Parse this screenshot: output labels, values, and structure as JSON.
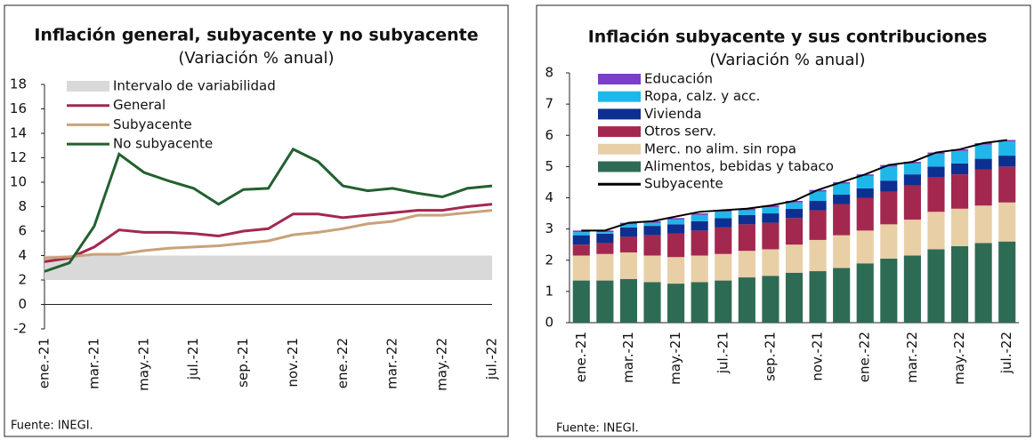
{
  "chart_data": [
    {
      "type": "line",
      "title": "Inflación general, subyacente y no subyacente",
      "subtitle": "(Variación % anual)",
      "source": "Fuente: INEGI.",
      "categories": [
        "ene.-21",
        null,
        "mar.-21",
        null,
        "may.-21",
        null,
        "jul.-21",
        null,
        "sep.-21",
        null,
        "nov.-21",
        null,
        "ene.-22",
        null,
        "mar.-22",
        null,
        "may.-22",
        null,
        "jul.-22"
      ],
      "interval": {
        "name": "Intervalo de variabilidad",
        "color": "#d9d9d9",
        "low": 2,
        "high": 4
      },
      "series": [
        {
          "name": "General",
          "color": "#a3284f",
          "values": [
            3.5,
            3.8,
            4.7,
            6.1,
            5.9,
            5.9,
            5.8,
            5.6,
            6.0,
            6.2,
            7.4,
            7.4,
            7.1,
            7.3,
            7.5,
            7.7,
            7.7,
            8.0,
            8.2
          ]
        },
        {
          "name": "Subyacente",
          "color": "#c9a27a",
          "values": [
            3.8,
            3.9,
            4.1,
            4.1,
            4.4,
            4.6,
            4.7,
            4.8,
            5.0,
            5.2,
            5.7,
            5.9,
            6.2,
            6.6,
            6.8,
            7.3,
            7.3,
            7.5,
            7.7
          ]
        },
        {
          "name": "No subyacente",
          "color": "#22602f",
          "values": [
            2.7,
            3.4,
            6.4,
            12.3,
            10.8,
            10.1,
            9.5,
            8.2,
            9.4,
            9.5,
            12.7,
            11.7,
            9.7,
            9.3,
            9.5,
            9.1,
            8.8,
            9.5,
            9.7
          ]
        }
      ],
      "ylim": [
        -2,
        18
      ],
      "yticks": [
        -2,
        0,
        2,
        4,
        6,
        8,
        10,
        12,
        14,
        16,
        18
      ]
    },
    {
      "type": "bar",
      "stacked": true,
      "title": "Inflación subyacente y sus contribuciones",
      "subtitle": "(Variación % anual)",
      "source": "Fuente: INEGI.",
      "categories": [
        "ene.-21",
        null,
        "mar.-21",
        null,
        "may.-21",
        null,
        "jul.-21",
        null,
        "sep.-21",
        null,
        "nov.-21",
        null,
        "ene.-22",
        null,
        "mar.-22",
        null,
        "may.-22",
        null,
        "jul.-22"
      ],
      "series": [
        {
          "name": "Alimentos, bebidas y tabaco",
          "color": "#2e6b55",
          "values": [
            1.35,
            1.35,
            1.4,
            1.3,
            1.25,
            1.3,
            1.35,
            1.45,
            1.5,
            1.6,
            1.65,
            1.75,
            1.9,
            2.05,
            2.15,
            2.35,
            2.45,
            2.55,
            2.6
          ]
        },
        {
          "name": "Merc. no alim. sin ropa",
          "color": "#e8cfa6",
          "values": [
            0.8,
            0.85,
            0.85,
            0.85,
            0.85,
            0.85,
            0.85,
            0.85,
            0.85,
            0.9,
            1.0,
            1.05,
            1.05,
            1.1,
            1.15,
            1.2,
            1.2,
            1.2,
            1.25
          ]
        },
        {
          "name": "Otros serv.",
          "color": "#a3284f",
          "values": [
            0.35,
            0.35,
            0.5,
            0.65,
            0.75,
            0.8,
            0.85,
            0.85,
            0.85,
            0.85,
            0.95,
            1.0,
            1.05,
            1.05,
            1.1,
            1.1,
            1.1,
            1.15,
            1.15
          ]
        },
        {
          "name": "Vivienda",
          "color": "#0d2f8f",
          "values": [
            0.3,
            0.3,
            0.3,
            0.3,
            0.3,
            0.3,
            0.3,
            0.3,
            0.3,
            0.3,
            0.3,
            0.3,
            0.3,
            0.35,
            0.35,
            0.35,
            0.35,
            0.35,
            0.35
          ]
        },
        {
          "name": "Ropa, calz. y acc.",
          "color": "#1fb7ea",
          "values": [
            0.1,
            0.05,
            0.1,
            0.1,
            0.15,
            0.2,
            0.2,
            0.15,
            0.2,
            0.2,
            0.3,
            0.35,
            0.4,
            0.45,
            0.35,
            0.4,
            0.4,
            0.45,
            0.45
          ]
        },
        {
          "name": "Educación",
          "color": "#7a3fc4",
          "values": [
            0.05,
            0.05,
            0.05,
            0.05,
            0.05,
            0.05,
            0.05,
            0.05,
            0.05,
            0.05,
            0.05,
            0.05,
            0.05,
            0.05,
            0.05,
            0.05,
            0.05,
            0.05,
            0.05
          ]
        },
        {
          "name": "Subyacente",
          "type": "line",
          "color": "#000000",
          "values": [
            2.95,
            2.95,
            3.2,
            3.25,
            3.4,
            3.55,
            3.6,
            3.65,
            3.75,
            3.9,
            4.25,
            4.5,
            4.75,
            5.05,
            5.15,
            5.45,
            5.55,
            5.75,
            5.85
          ]
        }
      ],
      "ylim": [
        0,
        8
      ],
      "yticks": [
        0,
        1,
        2,
        3,
        4,
        5,
        6,
        7,
        8
      ]
    }
  ]
}
